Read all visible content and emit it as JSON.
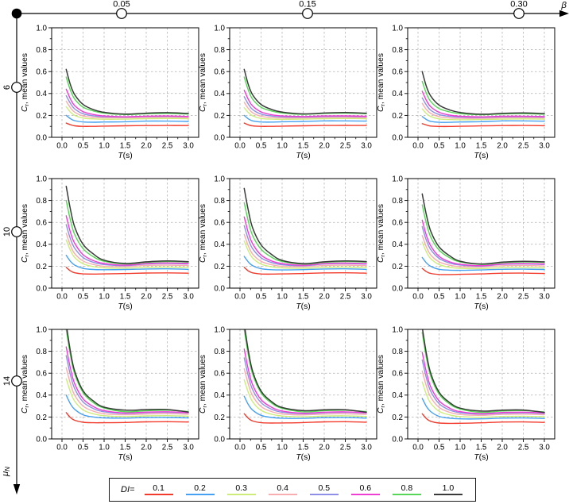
{
  "figure": {
    "top_axis": {
      "symbol": "β",
      "values": [
        "0.05",
        "0.15",
        "0.30"
      ]
    },
    "left_axis": {
      "symbol": "μ",
      "subscript": "N",
      "values": [
        "6",
        "10",
        "14"
      ]
    }
  },
  "chart_data": {
    "type": "line",
    "layout": "3x3 small multiples; columns = damping ratio beta, rows = ductility muN",
    "xlabel": {
      "var": "T",
      "rest": "(s)"
    },
    "ylabel": {
      "var": "C",
      "sub": "r",
      "rest": ", mean values"
    },
    "xlim": [
      0,
      3
    ],
    "ylim": [
      0,
      1
    ],
    "xticks": [
      0,
      0.5,
      1,
      1.5,
      2,
      2.5,
      3
    ],
    "yticks": [
      0,
      0.2,
      0.4,
      0.6,
      0.8,
      1
    ],
    "x_gridlines": [
      0,
      0.5,
      1,
      1.5,
      2,
      2.5,
      3
    ],
    "y_gridlines": [
      0.2,
      0.4,
      0.6,
      0.8
    ],
    "grid": "dashed",
    "legend": {
      "title": "DI=",
      "position": "bottom"
    },
    "series_labels": [
      "0.1",
      "0.2",
      "0.3",
      "0.4",
      "0.5",
      "0.6",
      "0.8",
      "1.0"
    ],
    "series_colors": [
      "#f23b2d",
      "#46a1f2",
      "#cdec7a",
      "#f8adb0",
      "#8f8fe8",
      "#ee3fd2",
      "#57d657",
      "#3a3a3a"
    ],
    "x": [
      0.1,
      0.2,
      0.3,
      0.5,
      0.75,
      1.0,
      1.5,
      2.0,
      2.5,
      3.0
    ],
    "plots": [
      {
        "mu": "6",
        "beta": "0.05",
        "series": [
          [
            0.13,
            0.115,
            0.105,
            0.1,
            0.1,
            0.102,
            0.105,
            0.107,
            0.108,
            0.107
          ],
          [
            0.2,
            0.17,
            0.152,
            0.14,
            0.138,
            0.14,
            0.142,
            0.148,
            0.148,
            0.145
          ],
          [
            0.28,
            0.23,
            0.2,
            0.175,
            0.168,
            0.165,
            0.166,
            0.17,
            0.172,
            0.17
          ],
          [
            0.33,
            0.27,
            0.23,
            0.195,
            0.182,
            0.178,
            0.178,
            0.182,
            0.183,
            0.18
          ],
          [
            0.38,
            0.31,
            0.26,
            0.215,
            0.196,
            0.188,
            0.185,
            0.19,
            0.192,
            0.188
          ],
          [
            0.44,
            0.35,
            0.29,
            0.235,
            0.208,
            0.195,
            0.188,
            0.193,
            0.195,
            0.19
          ],
          [
            0.55,
            0.43,
            0.35,
            0.275,
            0.24,
            0.22,
            0.208,
            0.215,
            0.218,
            0.212
          ],
          [
            0.62,
            0.48,
            0.39,
            0.3,
            0.252,
            0.228,
            0.212,
            0.22,
            0.225,
            0.218
          ]
        ]
      },
      {
        "mu": "6",
        "beta": "0.15",
        "series": [
          [
            0.13,
            0.114,
            0.104,
            0.1,
            0.1,
            0.102,
            0.105,
            0.108,
            0.109,
            0.108
          ],
          [
            0.2,
            0.168,
            0.15,
            0.14,
            0.139,
            0.142,
            0.145,
            0.15,
            0.15,
            0.148
          ],
          [
            0.27,
            0.225,
            0.196,
            0.172,
            0.166,
            0.164,
            0.166,
            0.17,
            0.172,
            0.17
          ],
          [
            0.32,
            0.262,
            0.224,
            0.192,
            0.18,
            0.176,
            0.177,
            0.181,
            0.182,
            0.18
          ],
          [
            0.37,
            0.302,
            0.254,
            0.212,
            0.194,
            0.187,
            0.185,
            0.19,
            0.191,
            0.188
          ],
          [
            0.43,
            0.344,
            0.286,
            0.232,
            0.206,
            0.195,
            0.19,
            0.195,
            0.196,
            0.192
          ],
          [
            0.55,
            0.428,
            0.348,
            0.274,
            0.24,
            0.222,
            0.21,
            0.218,
            0.22,
            0.215
          ],
          [
            0.62,
            0.478,
            0.388,
            0.3,
            0.254,
            0.23,
            0.214,
            0.222,
            0.226,
            0.22
          ]
        ]
      },
      {
        "mu": "6",
        "beta": "0.30",
        "series": [
          [
            0.125,
            0.112,
            0.103,
            0.099,
            0.099,
            0.101,
            0.104,
            0.107,
            0.108,
            0.106
          ],
          [
            0.19,
            0.162,
            0.146,
            0.137,
            0.137,
            0.14,
            0.143,
            0.15,
            0.15,
            0.147
          ],
          [
            0.26,
            0.216,
            0.19,
            0.168,
            0.162,
            0.16,
            0.162,
            0.166,
            0.168,
            0.166
          ],
          [
            0.31,
            0.253,
            0.218,
            0.188,
            0.177,
            0.173,
            0.174,
            0.178,
            0.179,
            0.177
          ],
          [
            0.36,
            0.294,
            0.248,
            0.208,
            0.191,
            0.184,
            0.182,
            0.187,
            0.188,
            0.185
          ],
          [
            0.42,
            0.336,
            0.28,
            0.228,
            0.203,
            0.192,
            0.187,
            0.192,
            0.193,
            0.19
          ],
          [
            0.51,
            0.4,
            0.328,
            0.262,
            0.232,
            0.216,
            0.206,
            0.214,
            0.216,
            0.211
          ],
          [
            0.6,
            0.464,
            0.378,
            0.294,
            0.25,
            0.227,
            0.211,
            0.219,
            0.223,
            0.217
          ]
        ]
      },
      {
        "mu": "10",
        "beta": "0.05",
        "series": [
          [
            0.19,
            0.157,
            0.14,
            0.13,
            0.128,
            0.13,
            0.133,
            0.138,
            0.139,
            0.136
          ],
          [
            0.3,
            0.245,
            0.21,
            0.18,
            0.17,
            0.168,
            0.17,
            0.175,
            0.176,
            0.172
          ],
          [
            0.44,
            0.345,
            0.28,
            0.222,
            0.196,
            0.185,
            0.182,
            0.19,
            0.192,
            0.188
          ],
          [
            0.5,
            0.39,
            0.315,
            0.248,
            0.215,
            0.2,
            0.196,
            0.208,
            0.21,
            0.206
          ],
          [
            0.58,
            0.45,
            0.365,
            0.28,
            0.235,
            0.215,
            0.205,
            0.22,
            0.225,
            0.22
          ],
          [
            0.66,
            0.51,
            0.41,
            0.305,
            0.25,
            0.225,
            0.21,
            0.225,
            0.23,
            0.225
          ],
          [
            0.8,
            0.62,
            0.49,
            0.36,
            0.285,
            0.245,
            0.22,
            0.235,
            0.242,
            0.238
          ],
          [
            0.93,
            0.72,
            0.56,
            0.4,
            0.31,
            0.255,
            0.225,
            0.24,
            0.248,
            0.242
          ]
        ]
      },
      {
        "mu": "10",
        "beta": "0.15",
        "series": [
          [
            0.19,
            0.156,
            0.139,
            0.129,
            0.128,
            0.13,
            0.133,
            0.139,
            0.14,
            0.136
          ],
          [
            0.29,
            0.238,
            0.205,
            0.177,
            0.168,
            0.166,
            0.169,
            0.175,
            0.176,
            0.172
          ],
          [
            0.43,
            0.338,
            0.275,
            0.219,
            0.194,
            0.184,
            0.181,
            0.19,
            0.192,
            0.188
          ],
          [
            0.49,
            0.383,
            0.31,
            0.245,
            0.213,
            0.199,
            0.195,
            0.207,
            0.21,
            0.205
          ],
          [
            0.57,
            0.443,
            0.36,
            0.277,
            0.233,
            0.214,
            0.204,
            0.22,
            0.224,
            0.219
          ],
          [
            0.65,
            0.503,
            0.405,
            0.302,
            0.248,
            0.224,
            0.209,
            0.224,
            0.229,
            0.224
          ],
          [
            0.78,
            0.605,
            0.48,
            0.355,
            0.282,
            0.243,
            0.219,
            0.235,
            0.242,
            0.238
          ],
          [
            0.91,
            0.705,
            0.55,
            0.395,
            0.307,
            0.253,
            0.224,
            0.24,
            0.248,
            0.243
          ]
        ]
      },
      {
        "mu": "10",
        "beta": "0.30",
        "series": [
          [
            0.18,
            0.15,
            0.134,
            0.125,
            0.124,
            0.126,
            0.13,
            0.136,
            0.137,
            0.133
          ],
          [
            0.28,
            0.23,
            0.199,
            0.172,
            0.164,
            0.162,
            0.166,
            0.172,
            0.173,
            0.17
          ],
          [
            0.42,
            0.33,
            0.269,
            0.215,
            0.19,
            0.181,
            0.178,
            0.187,
            0.189,
            0.185
          ],
          [
            0.48,
            0.375,
            0.304,
            0.24,
            0.209,
            0.196,
            0.192,
            0.204,
            0.207,
            0.202
          ],
          [
            0.56,
            0.435,
            0.353,
            0.272,
            0.229,
            0.211,
            0.201,
            0.217,
            0.221,
            0.216
          ],
          [
            0.62,
            0.48,
            0.387,
            0.29,
            0.24,
            0.218,
            0.205,
            0.22,
            0.225,
            0.22
          ],
          [
            0.76,
            0.59,
            0.468,
            0.347,
            0.277,
            0.239,
            0.216,
            0.232,
            0.239,
            0.235
          ],
          [
            0.86,
            0.667,
            0.522,
            0.377,
            0.295,
            0.246,
            0.22,
            0.237,
            0.245,
            0.24
          ]
        ]
      },
      {
        "mu": "14",
        "beta": "0.05",
        "series": [
          [
            0.24,
            0.195,
            0.17,
            0.152,
            0.148,
            0.148,
            0.15,
            0.156,
            0.157,
            0.154
          ],
          [
            0.4,
            0.32,
            0.27,
            0.22,
            0.2,
            0.192,
            0.19,
            0.195,
            0.196,
            0.192
          ],
          [
            0.55,
            0.43,
            0.345,
            0.265,
            0.228,
            0.212,
            0.204,
            0.21,
            0.212,
            0.208
          ],
          [
            0.65,
            0.505,
            0.4,
            0.3,
            0.252,
            0.23,
            0.22,
            0.228,
            0.23,
            0.225
          ],
          [
            0.76,
            0.585,
            0.46,
            0.338,
            0.276,
            0.248,
            0.232,
            0.24,
            0.243,
            0.237
          ],
          [
            0.84,
            0.645,
            0.505,
            0.366,
            0.294,
            0.259,
            0.237,
            0.245,
            0.248,
            0.24
          ],
          [
            1.0,
            0.765,
            0.595,
            0.423,
            0.33,
            0.282,
            0.248,
            0.258,
            0.262,
            0.25
          ],
          [
            1.05,
            0.8,
            0.62,
            0.44,
            0.345,
            0.29,
            0.262,
            0.268,
            0.268,
            0.245
          ]
        ]
      },
      {
        "mu": "14",
        "beta": "0.15",
        "series": [
          [
            0.23,
            0.188,
            0.164,
            0.148,
            0.145,
            0.146,
            0.149,
            0.156,
            0.157,
            0.153
          ],
          [
            0.39,
            0.312,
            0.263,
            0.215,
            0.196,
            0.189,
            0.188,
            0.194,
            0.195,
            0.19
          ],
          [
            0.54,
            0.422,
            0.339,
            0.261,
            0.225,
            0.209,
            0.202,
            0.209,
            0.211,
            0.206
          ],
          [
            0.64,
            0.497,
            0.394,
            0.296,
            0.249,
            0.228,
            0.219,
            0.227,
            0.229,
            0.224
          ],
          [
            0.74,
            0.57,
            0.449,
            0.331,
            0.271,
            0.244,
            0.23,
            0.239,
            0.242,
            0.236
          ],
          [
            0.82,
            0.63,
            0.494,
            0.359,
            0.289,
            0.255,
            0.235,
            0.244,
            0.247,
            0.239
          ],
          [
            1.0,
            0.762,
            0.592,
            0.42,
            0.327,
            0.279,
            0.247,
            0.258,
            0.262,
            0.249
          ],
          [
            1.05,
            0.8,
            0.618,
            0.437,
            0.34,
            0.287,
            0.258,
            0.266,
            0.267,
            0.244
          ]
        ]
      },
      {
        "mu": "14",
        "beta": "0.30",
        "series": [
          [
            0.23,
            0.185,
            0.161,
            0.145,
            0.142,
            0.143,
            0.147,
            0.154,
            0.155,
            0.151
          ],
          [
            0.37,
            0.296,
            0.25,
            0.206,
            0.189,
            0.183,
            0.183,
            0.19,
            0.191,
            0.187
          ],
          [
            0.52,
            0.406,
            0.327,
            0.252,
            0.219,
            0.204,
            0.198,
            0.205,
            0.207,
            0.203
          ],
          [
            0.62,
            0.481,
            0.382,
            0.288,
            0.243,
            0.223,
            0.215,
            0.224,
            0.226,
            0.221
          ],
          [
            0.72,
            0.554,
            0.437,
            0.322,
            0.264,
            0.239,
            0.226,
            0.235,
            0.238,
            0.232
          ],
          [
            0.79,
            0.607,
            0.477,
            0.348,
            0.281,
            0.249,
            0.231,
            0.241,
            0.244,
            0.237
          ],
          [
            0.97,
            0.74,
            0.575,
            0.409,
            0.319,
            0.273,
            0.243,
            0.255,
            0.259,
            0.246
          ],
          [
            1.02,
            0.777,
            0.602,
            0.427,
            0.332,
            0.281,
            0.254,
            0.263,
            0.264,
            0.242
          ]
        ]
      }
    ]
  }
}
